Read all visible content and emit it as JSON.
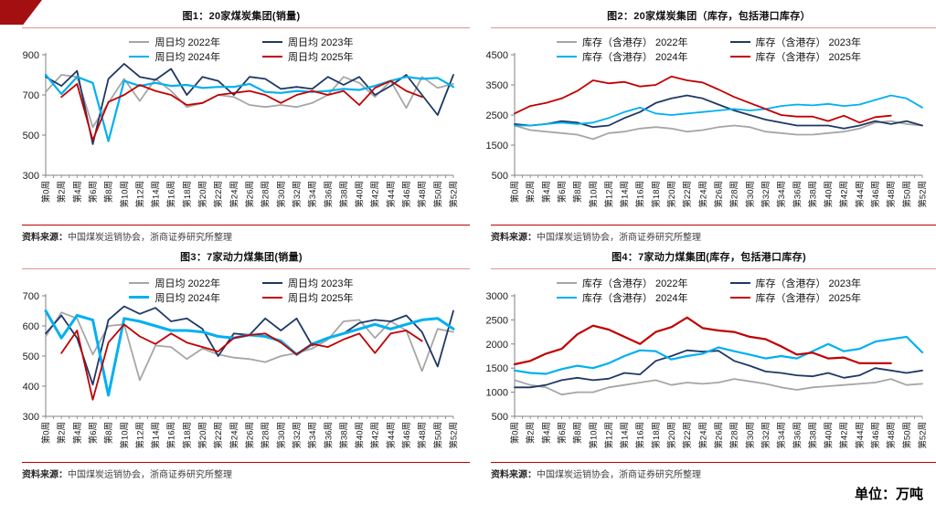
{
  "page": {
    "unit_label": "单位：万吨"
  },
  "panels": [
    {
      "title": "图1：20家煤炭集团(销量)",
      "source_prefix": "资料来源：",
      "source": "中国煤炭运销协会，浙商证券研究所整理"
    },
    {
      "title": "图2：20家煤炭集团（库存，包括港口库存）",
      "source_prefix": "资料来源：",
      "source": "中国煤炭运销协会，浙商证券研究所整理"
    },
    {
      "title": "图3：7家动力煤集团(销量)",
      "source_prefix": "资料来源：",
      "source": "中国煤炭运销协会，浙商证券研究所整理"
    },
    {
      "title": "图4：7家动力煤集团(库存，包括港口库存)",
      "source_prefix": "资料来源：",
      "source": "中国煤炭运销协会，浙商证券研究所整理"
    }
  ],
  "chart_data": [
    {
      "type": "line",
      "title": "图1：20家煤炭集团(销量)",
      "xlabel": "",
      "ylabel": "",
      "x_labels": [
        "第0周",
        "第2周",
        "第4周",
        "第6周",
        "第8周",
        "第10周",
        "第12周",
        "第14周",
        "第16周",
        "第18周",
        "第20周",
        "第22周",
        "第24周",
        "第26周",
        "第28周",
        "第30周",
        "第32周",
        "第34周",
        "第36周",
        "第38周",
        "第40周",
        "第42周",
        "第44周",
        "第46周",
        "第48周",
        "第50周",
        "第52周"
      ],
      "ylim": [
        300,
        900
      ],
      "yticks": [
        300,
        500,
        700,
        900
      ],
      "grid": false,
      "legend_position": "top-center",
      "series": [
        {
          "name": "周日均 2022年",
          "color": "#A6A6A6",
          "width": 1.8,
          "values": [
            715,
            800,
            790,
            540,
            660,
            780,
            670,
            780,
            720,
            640,
            660,
            700,
            690,
            650,
            640,
            650,
            640,
            660,
            700,
            790,
            760,
            690,
            770,
            635,
            790,
            735,
            755
          ]
        },
        {
          "name": "周日均 2023年",
          "color": "#1F3864",
          "width": 1.8,
          "values": [
            790,
            745,
            820,
            455,
            780,
            855,
            790,
            775,
            830,
            700,
            790,
            770,
            700,
            790,
            780,
            730,
            740,
            730,
            790,
            750,
            790,
            700,
            745,
            800,
            700,
            600,
            800
          ]
        },
        {
          "name": "周日均 2024年",
          "color": "#00B0F0",
          "width": 2.2,
          "values": [
            800,
            705,
            790,
            760,
            470,
            770,
            745,
            760,
            745,
            750,
            735,
            740,
            740,
            755,
            715,
            710,
            720,
            715,
            720,
            730,
            725,
            745,
            770,
            790,
            780,
            785,
            740
          ]
        },
        {
          "name": "周日均 2025年",
          "color": "#C00000",
          "width": 1.8,
          "values": [
            null,
            690,
            755,
            475,
            665,
            700,
            750,
            720,
            700,
            650,
            660,
            700,
            710,
            720,
            700,
            660,
            700,
            720,
            700,
            720,
            650,
            735,
            770,
            720,
            690,
            null,
            null
          ]
        }
      ]
    },
    {
      "type": "line",
      "title": "图2：20家煤炭集团（库存，包括港口库存）",
      "xlabel": "",
      "ylabel": "",
      "x_labels": [
        "第0周",
        "第2周",
        "第4周",
        "第6周",
        "第8周",
        "第10周",
        "第12周",
        "第14周",
        "第16周",
        "第18周",
        "第20周",
        "第22周",
        "第24周",
        "第26周",
        "第28周",
        "第30周",
        "第32周",
        "第34周",
        "第36周",
        "第38周",
        "第40周",
        "第42周",
        "第44周",
        "第46周",
        "第48周",
        "第50周",
        "第52周"
      ],
      "ylim": [
        500,
        4500
      ],
      "yticks": [
        500,
        1500,
        2500,
        3500,
        4500
      ],
      "grid": false,
      "legend_position": "top-center",
      "series": [
        {
          "name": "库存（含港存） 2022年",
          "color": "#A6A6A6",
          "width": 1.8,
          "values": [
            2150,
            2000,
            1950,
            1900,
            1850,
            1700,
            1900,
            1950,
            2050,
            2100,
            2050,
            1950,
            2000,
            2100,
            2150,
            2100,
            1950,
            1900,
            1850,
            1850,
            1900,
            1950,
            2050,
            2250,
            2300,
            2200,
            2150
          ]
        },
        {
          "name": "库存（含港存） 2023年",
          "color": "#1F3864",
          "width": 1.8,
          "values": [
            2200,
            2150,
            2200,
            2300,
            2250,
            2100,
            2150,
            2400,
            2600,
            2900,
            3050,
            3150,
            3050,
            2850,
            2650,
            2500,
            2350,
            2250,
            2150,
            2150,
            2150,
            2050,
            2150,
            2300,
            2200,
            2300,
            2150
          ]
        },
        {
          "name": "库存（含港存） 2024年",
          "color": "#00B0F0",
          "width": 1.8,
          "values": [
            2150,
            2150,
            2200,
            2250,
            2200,
            2250,
            2400,
            2600,
            2750,
            2550,
            2500,
            2550,
            2600,
            2650,
            2700,
            2650,
            2700,
            2800,
            2850,
            2820,
            2870,
            2800,
            2850,
            3000,
            3150,
            3050,
            2750
          ]
        },
        {
          "name": "库存（含港存） 2025年",
          "color": "#C00000",
          "width": 1.8,
          "values": [
            2550,
            2800,
            2900,
            3050,
            3300,
            3650,
            3550,
            3600,
            3450,
            3500,
            3780,
            3650,
            3580,
            3350,
            3100,
            2900,
            2700,
            2500,
            2450,
            2450,
            2300,
            2480,
            2250,
            2430,
            2480,
            null,
            null
          ]
        }
      ]
    },
    {
      "type": "line",
      "title": "图3：7家动力煤集团(销量)",
      "xlabel": "",
      "ylabel": "",
      "x_labels": [
        "第0周",
        "第2周",
        "第4周",
        "第6周",
        "第8周",
        "第10周",
        "第12周",
        "第14周",
        "第16周",
        "第18周",
        "第20周",
        "第22周",
        "第24周",
        "第26周",
        "第28周",
        "第30周",
        "第32周",
        "第34周",
        "第36周",
        "第38周",
        "第40周",
        "第42周",
        "第44周",
        "第46周",
        "第48周",
        "第50周",
        "第52周"
      ],
      "ylim": [
        300,
        700
      ],
      "yticks": [
        300,
        400,
        500,
        600,
        700
      ],
      "grid": false,
      "legend_position": "top-center",
      "series": [
        {
          "name": "周日均 2022年",
          "color": "#A6A6A6",
          "width": 1.8,
          "values": [
            565,
            645,
            625,
            505,
            600,
            605,
            420,
            535,
            530,
            490,
            525,
            505,
            495,
            490,
            480,
            500,
            510,
            525,
            555,
            615,
            620,
            560,
            615,
            585,
            450,
            590,
            580
          ]
        },
        {
          "name": "周日均 2023年",
          "color": "#1F3864",
          "width": 1.8,
          "values": [
            575,
            635,
            560,
            405,
            620,
            665,
            640,
            660,
            615,
            625,
            590,
            500,
            575,
            570,
            625,
            585,
            625,
            535,
            560,
            575,
            610,
            620,
            615,
            635,
            580,
            465,
            650
          ]
        },
        {
          "name": "周日均 2024年",
          "color": "#00B0F0",
          "width": 3,
          "values": [
            650,
            560,
            635,
            620,
            370,
            625,
            615,
            600,
            585,
            585,
            580,
            565,
            560,
            570,
            565,
            550,
            505,
            540,
            560,
            575,
            590,
            605,
            590,
            605,
            620,
            625,
            590
          ]
        },
        {
          "name": "周日均 2025年",
          "color": "#C00000",
          "width": 1.8,
          "values": [
            null,
            510,
            585,
            355,
            545,
            605,
            565,
            540,
            575,
            545,
            530,
            515,
            560,
            570,
            575,
            545,
            505,
            540,
            530,
            555,
            575,
            510,
            575,
            585,
            550,
            null,
            null
          ]
        }
      ]
    },
    {
      "type": "line",
      "title": "图4：7家动力煤集团(库存，包括港口库存)",
      "xlabel": "",
      "ylabel": "",
      "x_labels": [
        "第0周",
        "第2周",
        "第4周",
        "第6周",
        "第8周",
        "第10周",
        "第12周",
        "第14周",
        "第16周",
        "第18周",
        "第20周",
        "第22周",
        "第24周",
        "第26周",
        "第28周",
        "第30周",
        "第32周",
        "第34周",
        "第36周",
        "第38周",
        "第40周",
        "第42周",
        "第44周",
        "第46周",
        "第48周",
        "第50周",
        "第52周"
      ],
      "ylim": [
        500,
        3000
      ],
      "yticks": [
        500,
        1000,
        1500,
        2000,
        2500,
        3000
      ],
      "grid": false,
      "legend_position": "top-center",
      "series": [
        {
          "name": "库存（含港存） 2022年",
          "color": "#A6A6A6",
          "width": 1.8,
          "values": [
            1250,
            1150,
            1100,
            950,
            1000,
            1000,
            1100,
            1150,
            1200,
            1250,
            1150,
            1200,
            1175,
            1200,
            1275,
            1225,
            1175,
            1100,
            1050,
            1100,
            1125,
            1150,
            1175,
            1200,
            1275,
            1150,
            1175
          ]
        },
        {
          "name": "库存（含港存） 2023年",
          "color": "#1F3864",
          "width": 1.8,
          "values": [
            1100,
            1100,
            1150,
            1250,
            1300,
            1250,
            1280,
            1400,
            1370,
            1650,
            1750,
            1870,
            1840,
            1860,
            1650,
            1550,
            1430,
            1400,
            1350,
            1330,
            1400,
            1300,
            1350,
            1500,
            1450,
            1400,
            1450
          ]
        },
        {
          "name": "库存（含港存） 2024年",
          "color": "#00B0F0",
          "width": 2.2,
          "values": [
            1450,
            1400,
            1380,
            1480,
            1550,
            1500,
            1600,
            1750,
            1870,
            1850,
            1680,
            1750,
            1800,
            1930,
            1850,
            1780,
            1700,
            1750,
            1700,
            1850,
            2000,
            1850,
            1900,
            2050,
            2100,
            2150,
            1825
          ]
        },
        {
          "name": "库存（含港存） 2025年",
          "color": "#C00000",
          "width": 2.2,
          "values": [
            1580,
            1650,
            1800,
            1900,
            2200,
            2380,
            2300,
            2150,
            2000,
            2250,
            2350,
            2550,
            2330,
            2280,
            2250,
            2150,
            2100,
            1950,
            1780,
            1820,
            1700,
            1720,
            1600,
            1600,
            1600,
            null,
            null
          ]
        }
      ]
    }
  ]
}
